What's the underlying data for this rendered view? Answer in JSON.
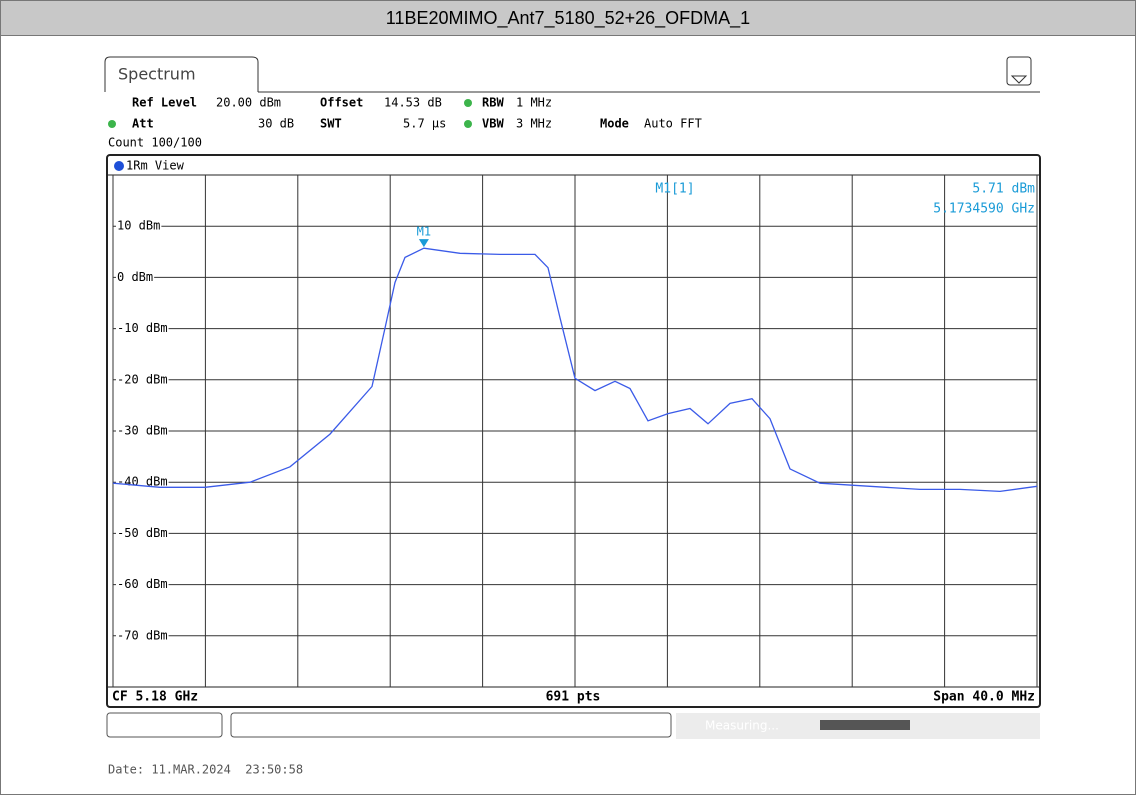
{
  "title": "11BE20MIMO_Ant7_5180_52+26_OFDMA_1",
  "tab": "Spectrum",
  "settings": {
    "ref_level_label": "Ref Level",
    "ref_level": "20.00 dBm",
    "offset_label": "Offset",
    "offset": "14.53 dB",
    "rbw_label": "RBW",
    "rbw": "1 MHz",
    "att_label": "Att",
    "att": "30 dB",
    "swt_label": "SWT",
    "swt": "5.7 µs",
    "vbw_label": "VBW",
    "vbw": "3 MHz",
    "mode_label": "Mode",
    "mode": "Auto FFT",
    "count": "Count 100/100"
  },
  "status": "Measuring...",
  "date": "Date: 11.MAR.2024  23:50:58",
  "chart_data": {
    "type": "line",
    "view": "1Rm View",
    "color": "#3b5be8",
    "x": [
      5.16,
      5.162035,
      5.163983,
      5.165931,
      5.167662,
      5.169394,
      5.171212,
      5.171775,
      5.172208,
      5.172641,
      5.173459,
      5.175022,
      5.176753,
      5.178268,
      5.178831,
      5.179351,
      5.18,
      5.180866,
      5.181732,
      5.182381,
      5.18316,
      5.184026,
      5.184978,
      5.185758,
      5.18671,
      5.187662,
      5.188442,
      5.189307,
      5.190606,
      5.192771,
      5.194935,
      5.196667,
      5.198398,
      5.2
    ],
    "values": [
      -40.2,
      -41,
      -41,
      -40,
      -37,
      -30.6,
      -21.3,
      -9.9,
      -1,
      3.9,
      5.71,
      4.7,
      4.5,
      4.5,
      1.9,
      -7.9,
      -19.7,
      -22.1,
      -20.3,
      -21.7,
      -28,
      -26.6,
      -25.6,
      -28.6,
      -24.6,
      -23.7,
      -27.6,
      -37.4,
      -40.2,
      -40.8,
      -41.4,
      -41.4,
      -41.8,
      -40.8
    ],
    "xlim": [
      5.16,
      5.2
    ],
    "xticks": [
      5.16,
      5.164,
      5.168,
      5.172,
      5.176,
      5.18,
      5.184,
      5.188,
      5.192,
      5.196,
      5.2
    ],
    "ylim": [
      -80,
      20
    ],
    "yticks": [
      {
        "value": 10,
        "label": "10 dBm"
      },
      {
        "value": 0,
        "label": "0 dBm"
      },
      {
        "value": -10,
        "label": "-10 dBm"
      },
      {
        "value": -20,
        "label": "-20 dBm"
      },
      {
        "value": -30,
        "label": "-30 dBm"
      },
      {
        "value": -40,
        "label": "-40 dBm"
      },
      {
        "value": -50,
        "label": "-50 dBm"
      },
      {
        "value": -60,
        "label": "-60 dBm"
      },
      {
        "value": -70,
        "label": "-70 dBm"
      }
    ],
    "grid": true,
    "marker": {
      "label": "M1",
      "readout": "M1[1]",
      "x": 5.173459,
      "y": 5.71,
      "x_label": "5.1734590 GHz",
      "y_label": "5.71 dBm",
      "color": "#1a9bd7"
    },
    "footer": {
      "left": "CF 5.18 GHz",
      "center": "691 pts",
      "right": "Span 40.0 MHz"
    }
  }
}
